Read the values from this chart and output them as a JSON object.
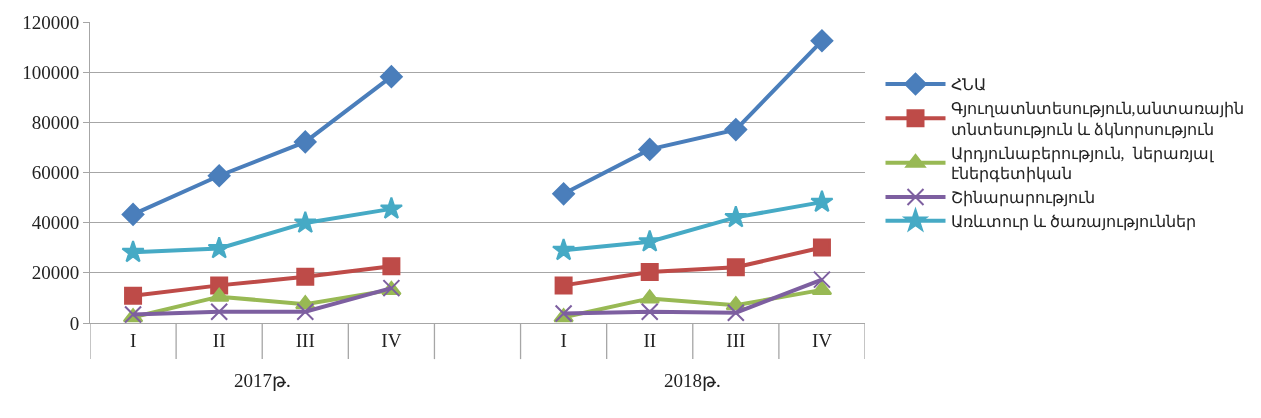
{
  "chart_data": {
    "type": "line",
    "categories": [
      "I",
      "II",
      "III",
      "IV",
      null,
      "I",
      "II",
      "III",
      "IV"
    ],
    "annotations": [
      "2017թ.",
      "2018թ."
    ],
    "ylim": [
      0,
      120000
    ],
    "yticks": [
      0,
      20000,
      40000,
      60000,
      80000,
      100000,
      120000
    ],
    "grid": "y",
    "legend": "right",
    "line_style": "solid",
    "series": [
      {
        "name": "ՀՆԱ",
        "color": "#4a7ebb",
        "marker": "diamond",
        "values": [
          43300,
          58700,
          72200,
          98200,
          null,
          51500,
          69200,
          77100,
          112500
        ]
      },
      {
        "name": "Գյուղատնտեսություն,անտառային տնտեսություն և ձկնորսություն",
        "color": "#be4b48",
        "marker": "square",
        "values": [
          10900,
          15000,
          18400,
          22600,
          null,
          15000,
          20300,
          22200,
          30100
        ]
      },
      {
        "name": "Արդյունաբերություն,  ներառյալ էներգետիկան",
        "color": "#98b954",
        "marker": "triangle",
        "values": [
          2300,
          10500,
          7500,
          13200,
          null,
          2300,
          9800,
          7100,
          13200
        ]
      },
      {
        "name": "Շինարարություն",
        "color": "#7d5fa0",
        "marker": "cross",
        "values": [
          3400,
          4500,
          4500,
          13900,
          null,
          3800,
          4500,
          4100,
          17300
        ]
      },
      {
        "name": "Առևտուր և ծառայություններ",
        "color": "#46aac5",
        "marker": "star",
        "values": [
          28200,
          29700,
          39900,
          45500,
          null,
          29000,
          32400,
          42100,
          48200
        ]
      }
    ]
  }
}
